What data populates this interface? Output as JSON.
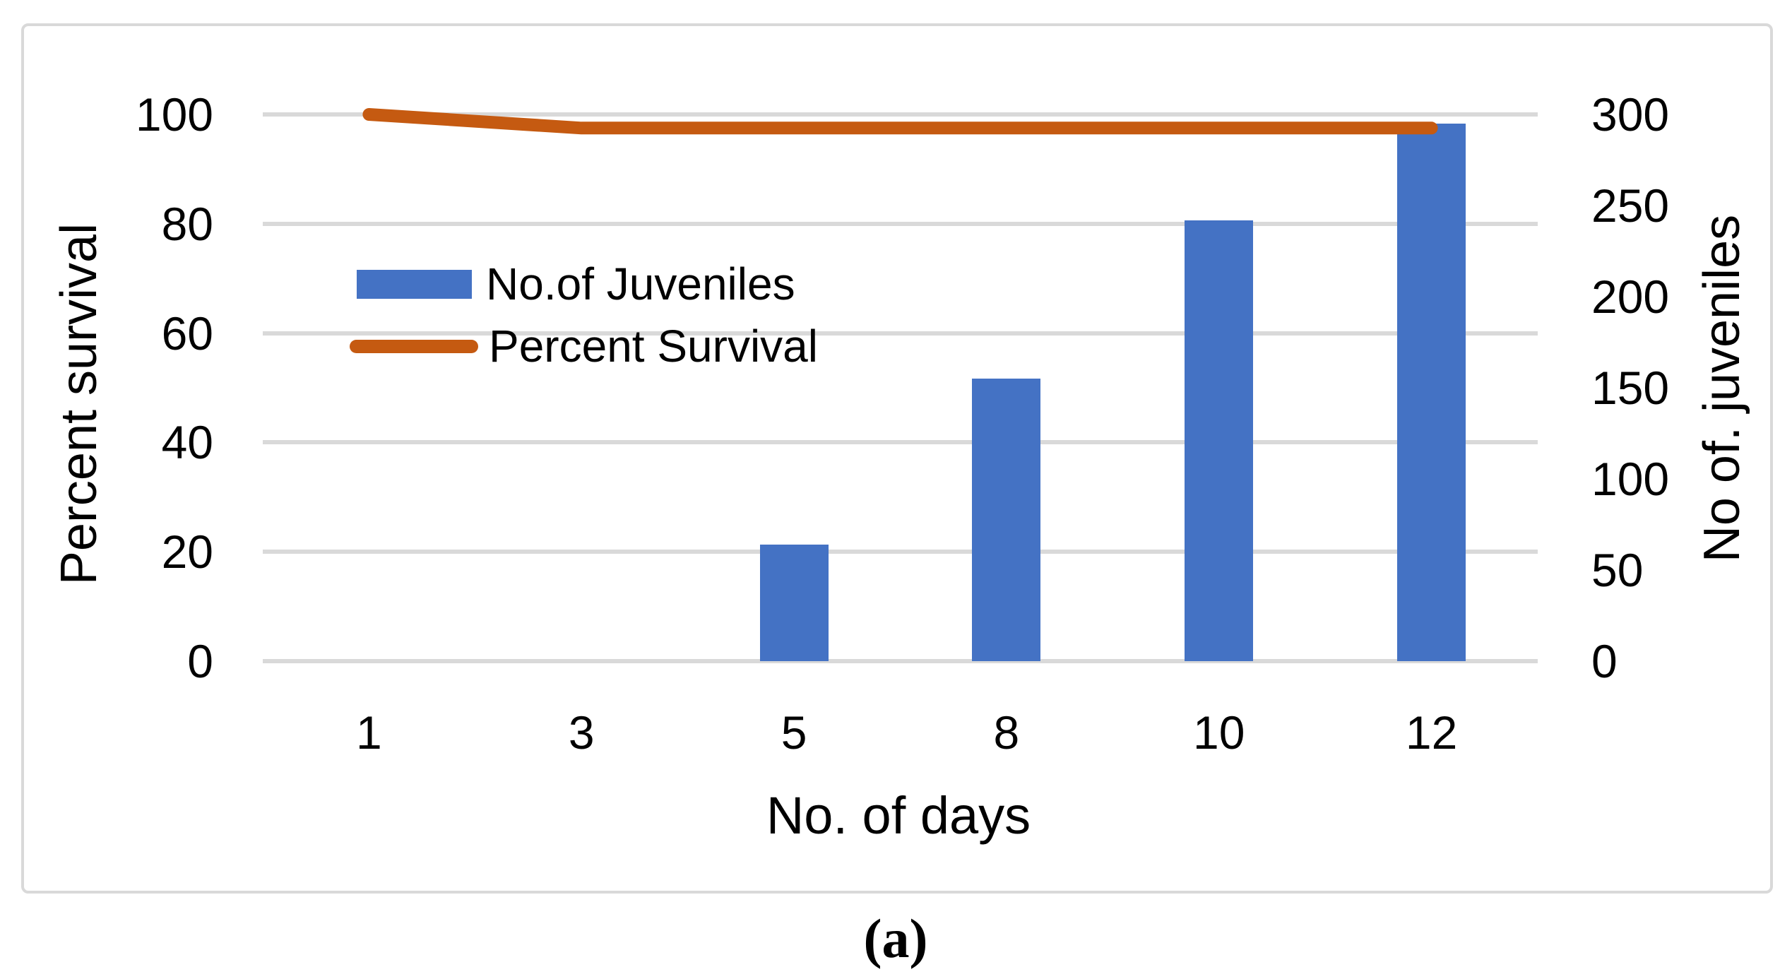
{
  "figure": {
    "caption": "(a)"
  },
  "chart_data": {
    "type": "combo-bar-line",
    "categories": [
      "1",
      "3",
      "5",
      "8",
      "10",
      "12"
    ],
    "series": [
      {
        "name": "No.of Juveniles",
        "type": "bar",
        "axis": "right",
        "color": "#4472c4",
        "values": [
          0,
          0,
          64,
          155,
          242,
          295
        ]
      },
      {
        "name": "Percent Survival",
        "type": "line",
        "axis": "left",
        "color": "#c55a11",
        "values": [
          100,
          97.5,
          97.5,
          97.5,
          97.5,
          97.5
        ]
      }
    ],
    "x_axis": {
      "title": "No. of days"
    },
    "left_axis": {
      "title": "Percent survival",
      "min": 0,
      "max": 100,
      "tick_step": 20,
      "ticks": [
        "100",
        "80",
        "60",
        "40",
        "20",
        "0"
      ]
    },
    "right_axis": {
      "title": "No of. juveniles",
      "min": 0,
      "max": 300,
      "tick_step": 50,
      "ticks": [
        "300",
        "250",
        "200",
        "150",
        "100",
        "50",
        "0"
      ]
    },
    "legend": {
      "position": "inside-top-left",
      "entries": [
        "No.of Juveniles",
        "Percent Survival"
      ]
    },
    "grid": true,
    "gridline_color": "#d9d9d9",
    "frame_border_color": "#d9d9d9",
    "background_color": "#ffffff"
  }
}
